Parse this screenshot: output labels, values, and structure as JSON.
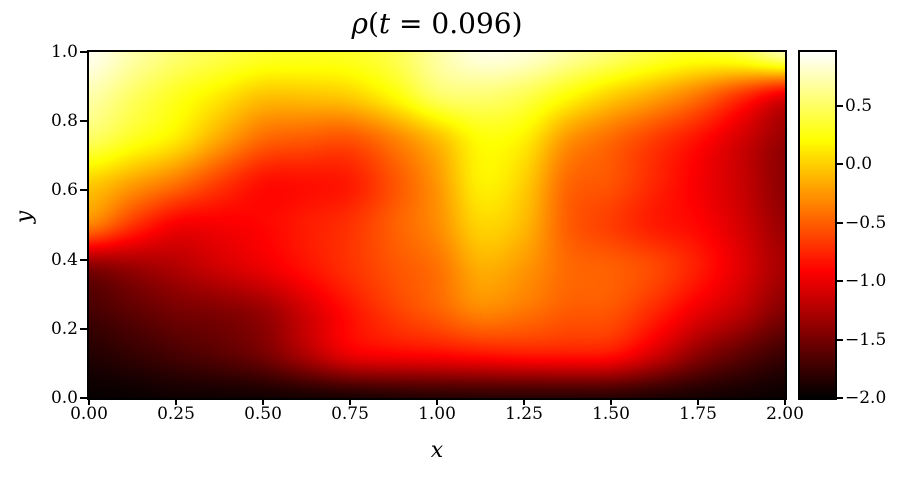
{
  "figure": {
    "title": "ρ(t = 0.096)",
    "title_parts": {
      "rho": "ρ",
      "open": "(",
      "var": "t",
      "rest": " = 0.096)"
    },
    "xlabel": "x",
    "ylabel": "y",
    "background_color": "#ffffff",
    "text_color": "#000000"
  },
  "axes": {
    "x": {
      "min": 0,
      "max": 2,
      "tick_values": [
        0,
        0.25,
        0.5,
        0.75,
        1.0,
        1.25,
        1.5,
        1.75,
        2.0
      ],
      "tick_labels": [
        "0.00",
        "0.25",
        "0.50",
        "0.75",
        "1.00",
        "1.25",
        "1.50",
        "1.75",
        "2.00"
      ]
    },
    "y": {
      "min": 0,
      "max": 1,
      "tick_values": [
        0,
        0.2,
        0.4,
        0.6,
        0.8,
        1.0
      ],
      "tick_labels": [
        "0.0",
        "0.2",
        "0.4",
        "0.6",
        "0.8",
        "1.0"
      ]
    }
  },
  "colorbar": {
    "colormap": "hot",
    "vmin": -2.0,
    "vmax": 0.96,
    "tick_values": [
      0.5,
      0.0,
      -0.5,
      -1.0,
      -1.5,
      -2.0
    ],
    "tick_labels": [
      "0.5",
      "0.0",
      "−0.5",
      "−1.0",
      "−1.5",
      "−2.0"
    ]
  },
  "chart_data": {
    "type": "heatmap",
    "title": "ρ(t = 0.096)",
    "xlabel": "x",
    "ylabel": "y",
    "x_range": [
      0,
      2
    ],
    "y_range": [
      0,
      1
    ],
    "colormap": "hot",
    "vmin": -2.0,
    "vmax": 0.96,
    "grid_x": [
      0,
      0.125,
      0.25,
      0.375,
      0.5,
      0.625,
      0.75,
      0.875,
      1.0,
      1.125,
      1.25,
      1.375,
      1.5,
      1.625,
      1.75,
      1.875,
      2.0
    ],
    "grid_y": [
      1.0,
      0.875,
      0.75,
      0.625,
      0.5,
      0.375,
      0.25,
      0.125,
      0.0
    ],
    "values": [
      [
        0.92,
        0.72,
        0.55,
        0.44,
        0.35,
        0.32,
        0.33,
        0.45,
        0.7,
        0.88,
        0.85,
        0.7,
        0.55,
        0.4,
        0.32,
        0.42,
        0.72
      ],
      [
        0.72,
        0.5,
        0.3,
        0.12,
        -0.05,
        -0.05,
        0.0,
        0.2,
        0.5,
        0.55,
        0.45,
        0.22,
        0.0,
        -0.18,
        -0.4,
        -0.7,
        -1.0
      ],
      [
        0.5,
        0.3,
        0.12,
        -0.18,
        -0.45,
        -0.52,
        -0.55,
        -0.35,
        -0.08,
        0.22,
        0.15,
        -0.25,
        -0.45,
        -0.65,
        -0.85,
        -1.1,
        -1.35
      ],
      [
        0.0,
        -0.2,
        -0.4,
        -0.65,
        -0.85,
        -0.85,
        -0.8,
        -0.55,
        -0.25,
        0.15,
        0.0,
        -0.45,
        -0.55,
        -0.75,
        -0.95,
        -1.15,
        -1.4
      ],
      [
        -0.35,
        -0.7,
        -0.95,
        -0.95,
        -0.9,
        -0.8,
        -0.7,
        -0.5,
        -0.3,
        0.02,
        -0.1,
        -0.5,
        -0.65,
        -0.8,
        -0.9,
        -1.1,
        -1.35
      ],
      [
        -1.45,
        -1.35,
        -1.25,
        -1.12,
        -1.0,
        -0.85,
        -0.7,
        -0.55,
        -0.42,
        -0.15,
        -0.25,
        -0.45,
        -0.5,
        -0.6,
        -0.8,
        -1.05,
        -1.3
      ],
      [
        -1.7,
        -1.6,
        -1.5,
        -1.45,
        -1.35,
        -1.1,
        -0.85,
        -0.65,
        -0.5,
        -0.33,
        -0.4,
        -0.52,
        -0.55,
        -0.75,
        -1.0,
        -1.2,
        -1.45
      ],
      [
        -1.85,
        -1.78,
        -1.7,
        -1.62,
        -1.5,
        -1.25,
        -1.0,
        -0.93,
        -0.9,
        -0.85,
        -0.82,
        -0.82,
        -0.85,
        -1.1,
        -1.4,
        -1.6,
        -1.75
      ],
      [
        -1.97,
        -1.96,
        -1.93,
        -1.93,
        -1.92,
        -1.9,
        -1.88,
        -1.85,
        -1.83,
        -1.82,
        -1.82,
        -1.82,
        -1.82,
        -1.86,
        -1.9,
        -1.93,
        -1.96
      ]
    ]
  }
}
